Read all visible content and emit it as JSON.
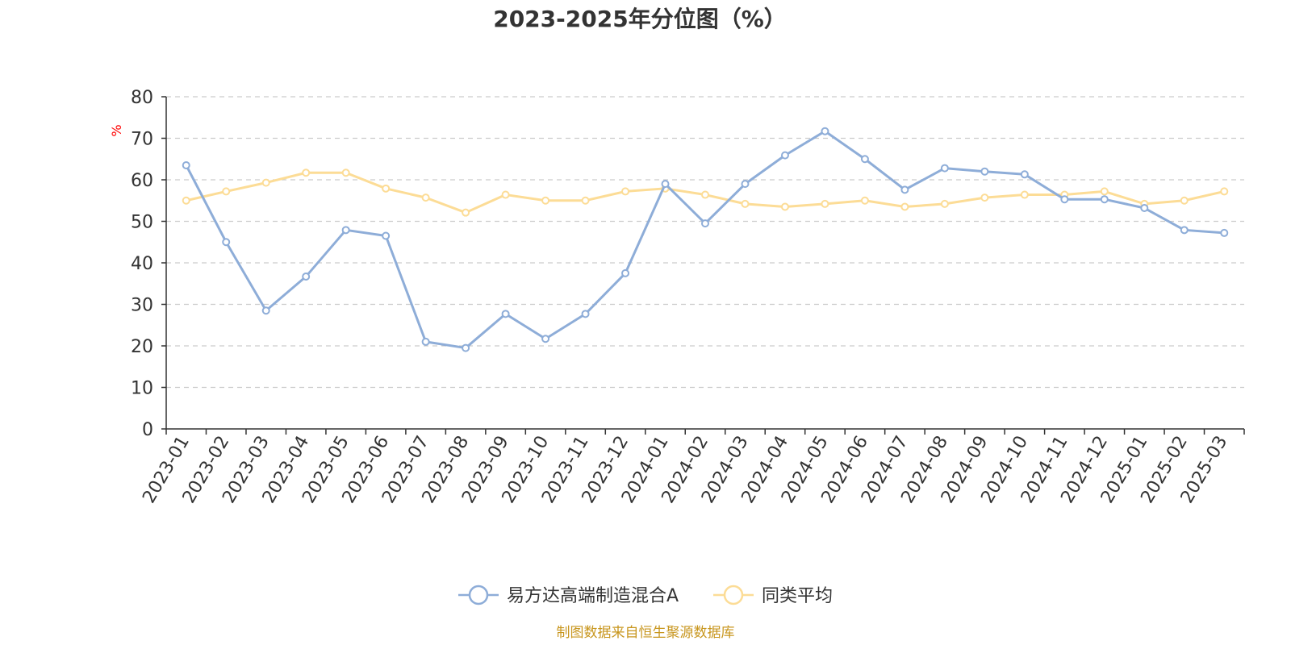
{
  "chart_data": {
    "type": "line",
    "title": "2023-2025年分位图（%）",
    "ylabel": "%",
    "ylim": [
      0,
      80
    ],
    "yticks": [
      "0",
      "10",
      "20",
      "30",
      "40",
      "50",
      "60",
      "70",
      "80"
    ],
    "grid": true,
    "legend_position": "bottom-center",
    "categories": [
      "2023-01",
      "2023-02",
      "2023-03",
      "2023-04",
      "2023-05",
      "2023-06",
      "2023-07",
      "2023-08",
      "2023-09",
      "2023-10",
      "2023-11",
      "2023-12",
      "2024-01",
      "2024-02",
      "2024-03",
      "2024-04",
      "2024-05",
      "2024-06",
      "2024-07",
      "2024-08",
      "2024-09",
      "2024-10",
      "2024-11",
      "2024-12",
      "2025-01",
      "2025-02",
      "2025-03"
    ],
    "series": [
      {
        "name": "易方达高端制造混合A",
        "color": "#8eadd8",
        "values": [
          63.5,
          45,
          28.5,
          36.7,
          47.9,
          46.5,
          21,
          19.5,
          27.7,
          21.7,
          27.7,
          37.5,
          59,
          49.5,
          59,
          65.9,
          71.7,
          65,
          57.6,
          62.8,
          62,
          61.3,
          55.3,
          55.3,
          53.2,
          47.9,
          47.2
        ]
      },
      {
        "name": "同类平均",
        "color": "#fcdc96",
        "values": [
          55,
          57.2,
          59.3,
          61.7,
          61.7,
          57.9,
          55.7,
          52.1,
          56.4,
          55,
          55,
          57.2,
          57.9,
          56.4,
          54.2,
          53.5,
          54.2,
          55,
          53.5,
          54.2,
          55.7,
          56.4,
          56.4,
          57.2,
          54.2,
          55,
          57.2
        ]
      }
    ]
  },
  "footer": {
    "source": "制图数据来自恒生聚源数据库"
  }
}
